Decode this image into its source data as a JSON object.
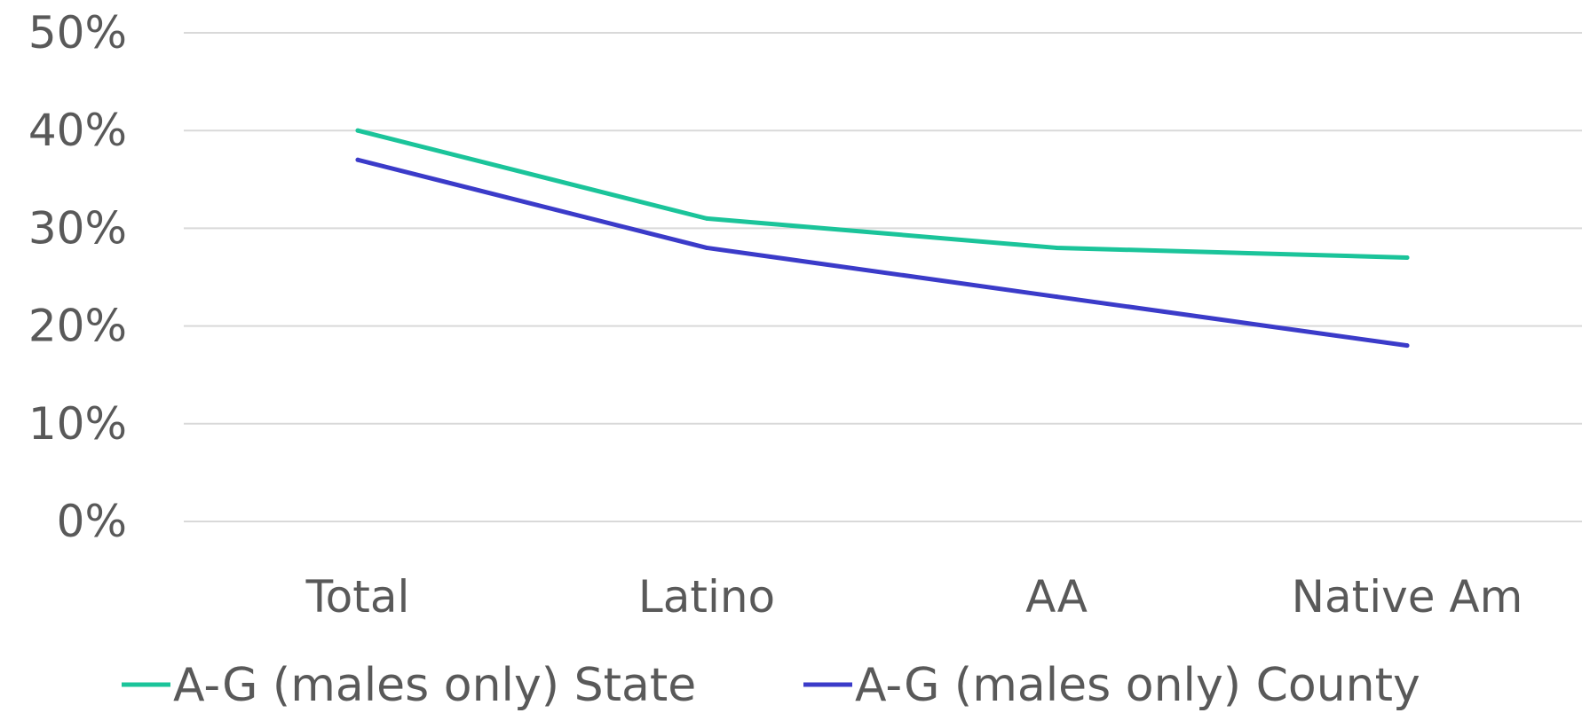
{
  "chart_data": {
    "type": "line",
    "categories": [
      "Total",
      "Latino",
      "AA",
      "Native Am"
    ],
    "series": [
      {
        "name": "A-G  (males only) State",
        "color": "#1BC49A",
        "values": [
          40,
          31,
          28,
          27
        ]
      },
      {
        "name": "A-G  (males only) County",
        "color": "#3B3BC9",
        "values": [
          37,
          28,
          23,
          18
        ]
      }
    ],
    "y_ticks": [
      "0%",
      "10%",
      "20%",
      "30%",
      "40%",
      "50%"
    ],
    "ylim": [
      0,
      50
    ],
    "grid": true,
    "legend_position": "bottom",
    "title": "",
    "xlabel": "",
    "ylabel": ""
  }
}
